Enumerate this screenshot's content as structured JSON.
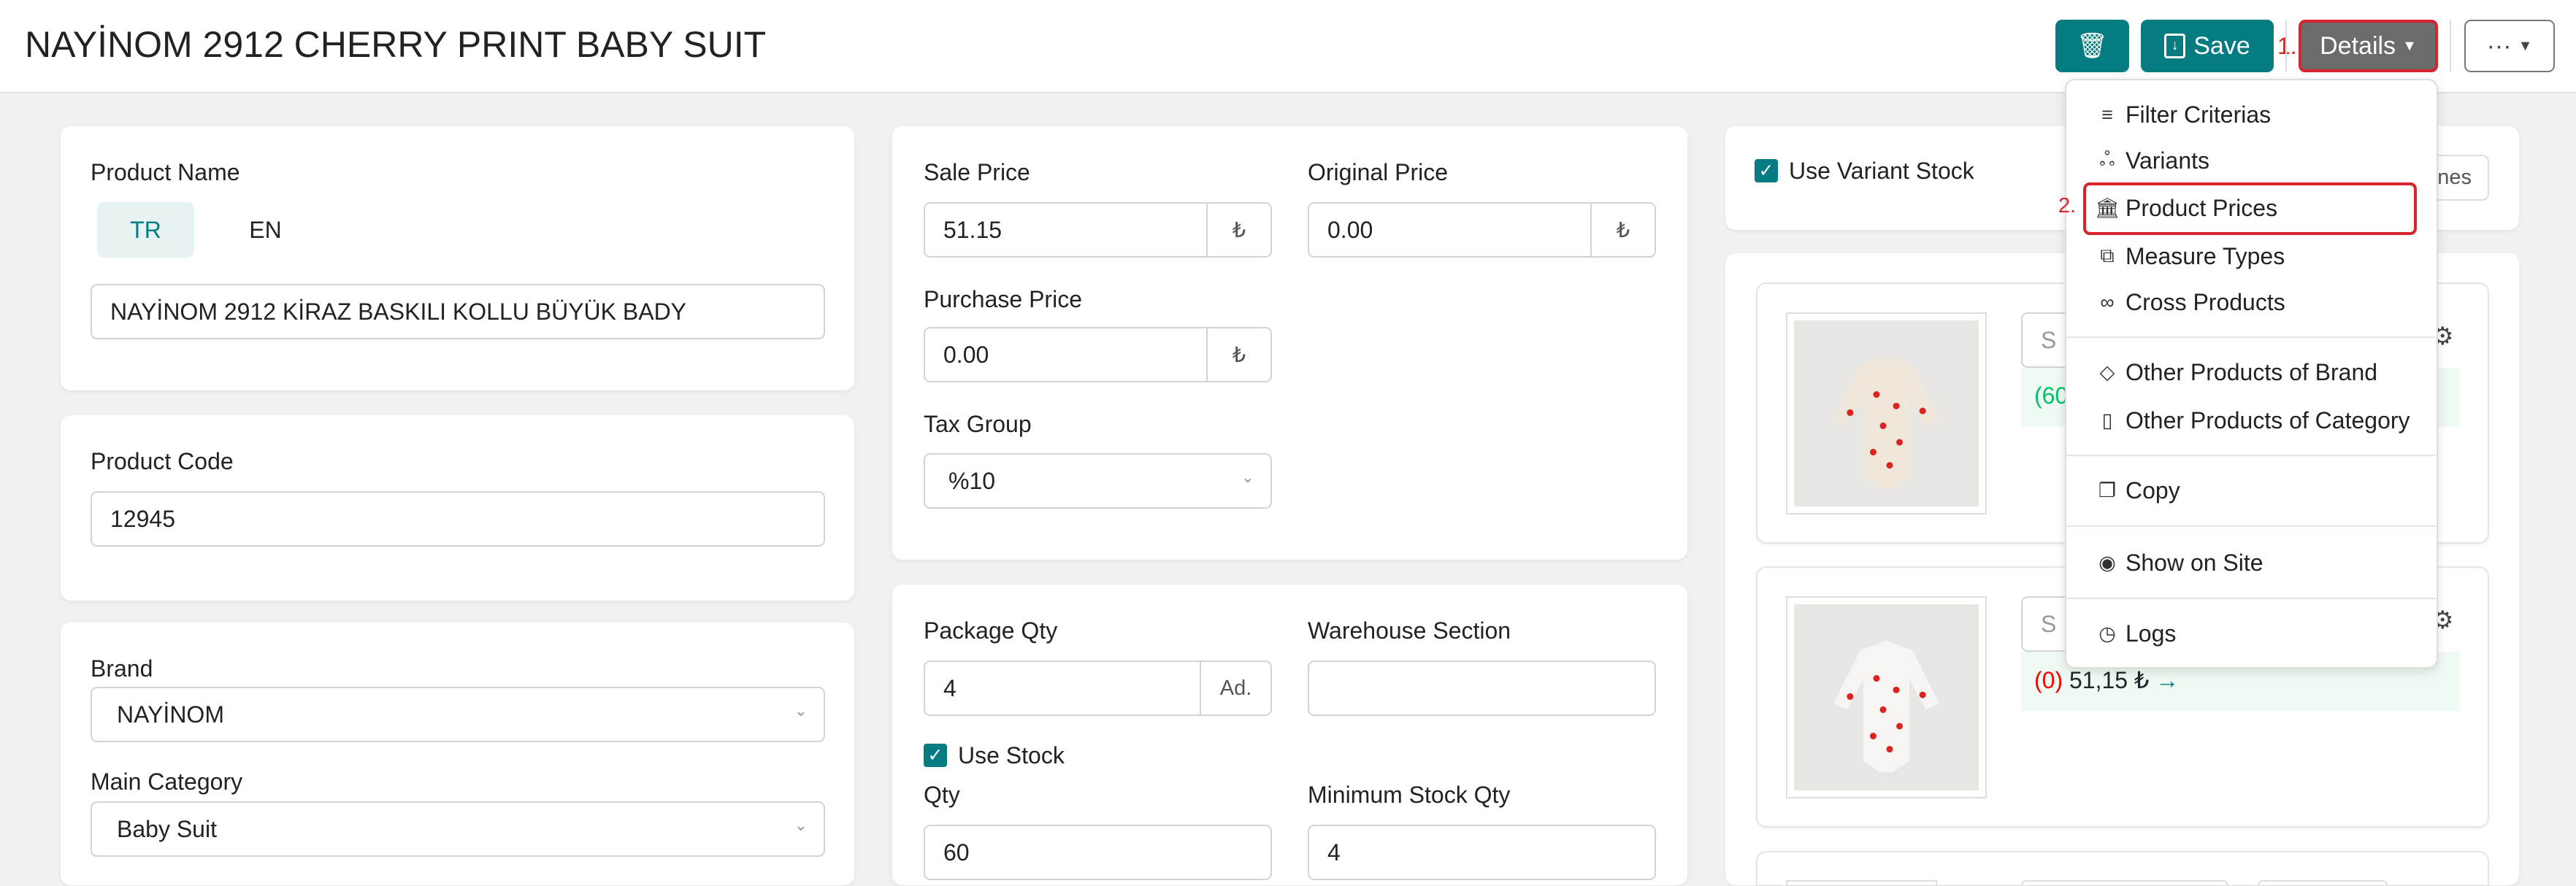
{
  "header": {
    "title": "NAYİNOM 2912 CHERRY PRINT BABY SUIT",
    "save_label": "Save",
    "details_label": "Details",
    "more_label": "···",
    "step1": "1.",
    "step2": "2."
  },
  "details_menu": {
    "items": [
      {
        "label": "Filter Criterias",
        "icon": "filter-icon"
      },
      {
        "label": "Variants",
        "icon": "variants-icon"
      },
      {
        "label": "Product Prices",
        "icon": "bank-icon"
      },
      {
        "label": "Measure Types",
        "icon": "boxes-icon"
      },
      {
        "label": "Cross Products",
        "icon": "link-icon"
      },
      {
        "label": "Other Products of Brand",
        "icon": "tag-icon"
      },
      {
        "label": "Other Products of Category",
        "icon": "bookmark-icon"
      },
      {
        "label": "Copy",
        "icon": "copy-icon"
      },
      {
        "label": "Show on Site",
        "icon": "eye-icon"
      },
      {
        "label": "Logs",
        "icon": "clock-icon"
      }
    ]
  },
  "product_name": {
    "label": "Product Name",
    "tab_tr": "TR",
    "tab_en": "EN",
    "value": "NAYİNOM 2912 KİRAZ BASKILI KOLLU BÜYÜK BADY"
  },
  "product_code": {
    "label": "Product Code",
    "value": "12945"
  },
  "brand": {
    "label": "Brand",
    "value": "NAYİNOM"
  },
  "main_category": {
    "label": "Main Category",
    "value": "Baby Suit"
  },
  "prices": {
    "sale_label": "Sale Price",
    "sale_value": "51.15",
    "original_label": "Original Price",
    "original_value": "0.00",
    "purchase_label": "Purchase Price",
    "purchase_value": "0.00",
    "currency": "₺",
    "tax_label": "Tax Group",
    "tax_value": "%10"
  },
  "stock": {
    "package_label": "Package Qty",
    "package_value": "4",
    "package_unit": "Ad.",
    "warehouse_label": "Warehouse Section",
    "warehouse_value": "",
    "use_stock_label": "Use Stock",
    "qty_label": "Qty",
    "qty_value": "60",
    "min_label": "Minimum Stock Qty",
    "min_value": "4"
  },
  "variants": {
    "use_variant_stock_label": "Use Variant Stock",
    "lines_button_partial": "nes",
    "items": [
      {
        "search_partial": "S",
        "stock_partial": "(60"
      },
      {
        "search_partial": "S",
        "stock": "(0)",
        "price": "51,15 ₺",
        "arrow": "→"
      }
    ]
  },
  "colors": {
    "teal": "#047c82",
    "details_gray": "#6c6c6c",
    "highlight_red": "#d9232d",
    "stock_green": "#00c26a",
    "variant_bg": "#edf9f1"
  }
}
